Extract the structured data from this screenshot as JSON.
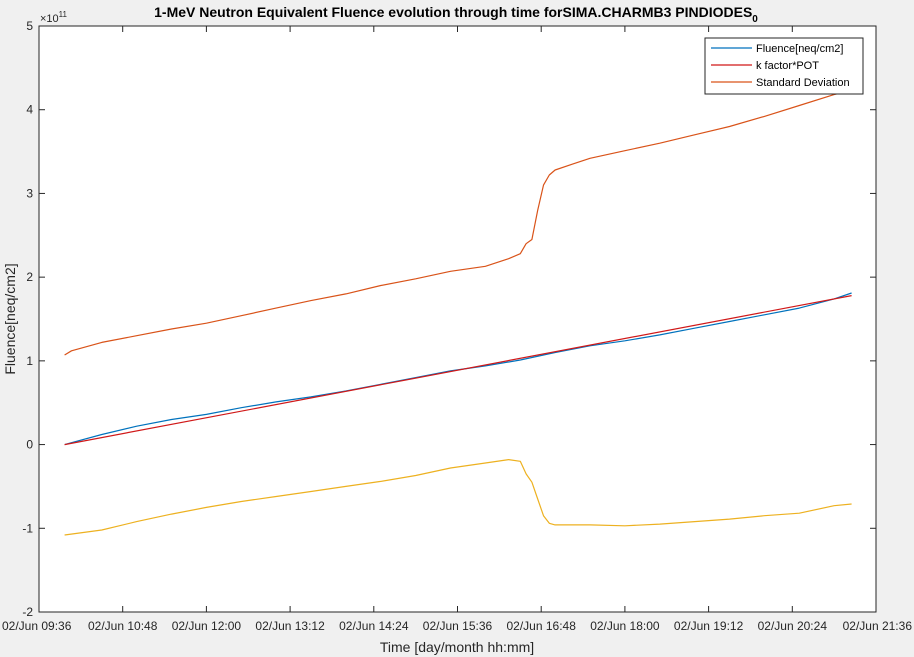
{
  "chart_data": {
    "type": "line",
    "title": "1-MeV Neutron Equivalent Fluence evolution through time forSIMA.CHARMB3 PINDIODES",
    "title_subscript": "0",
    "xlabel": "Time [day/month hh:mm]",
    "ylabel": "Fluence[neq/cm2]",
    "y_multiplier": "×10",
    "y_exponent": "11",
    "ylim": [
      -2,
      5
    ],
    "yticks": [
      -2,
      -1,
      0,
      1,
      2,
      3,
      4,
      5
    ],
    "ytick_labels": [
      "-2",
      "-1",
      "0",
      "1",
      "2",
      "3",
      "4",
      "5"
    ],
    "xlim": [
      "02/Jun 09:36",
      "02/Jun 21:36"
    ],
    "xticks": [
      "02/Jun 09:36",
      "02/Jun 10:48",
      "02/Jun 12:00",
      "02/Jun 13:12",
      "02/Jun 14:24",
      "02/Jun 15:36",
      "02/Jun 16:48",
      "02/Jun 18:00",
      "02/Jun 19:12",
      "02/Jun 20:24",
      "02/Jun 21:36"
    ],
    "xtick_labels": [
      "02/Jun 09:36",
      "02/Jun 10:48",
      "02/Jun 12:00",
      "02/Jun 13:12",
      "02/Jun 14:24",
      "02/Jun 15:36",
      "02/Jun 16:48",
      "02/Jun 18:00",
      "02/Jun 19:12",
      "02/Jun 20:24",
      "02/Jun 21:36"
    ],
    "grid": false,
    "legend_position": "top-right",
    "series": [
      {
        "name": "Fluence[neq/cm2]",
        "color": "#0072BD",
        "x": [
          "02/Jun 09:58",
          "02/Jun 10:30",
          "02/Jun 11:00",
          "02/Jun 11:30",
          "02/Jun 12:00",
          "02/Jun 12:30",
          "02/Jun 13:00",
          "02/Jun 13:30",
          "02/Jun 14:00",
          "02/Jun 14:30",
          "02/Jun 15:00",
          "02/Jun 15:30",
          "02/Jun 16:00",
          "02/Jun 16:30",
          "02/Jun 17:00",
          "02/Jun 17:30",
          "02/Jun 18:00",
          "02/Jun 18:30",
          "02/Jun 19:00",
          "02/Jun 19:30",
          "02/Jun 20:00",
          "02/Jun 20:30",
          "02/Jun 21:00",
          "02/Jun 21:15"
        ],
        "y": [
          0.0,
          0.12,
          0.22,
          0.3,
          0.36,
          0.44,
          0.51,
          0.57,
          0.64,
          0.72,
          0.8,
          0.88,
          0.94,
          1.01,
          1.1,
          1.18,
          1.24,
          1.31,
          1.39,
          1.47,
          1.55,
          1.63,
          1.74,
          1.81
        ]
      },
      {
        "name": "k factor*POT",
        "color": "#D01818",
        "x": [
          "02/Jun 09:58",
          "02/Jun 21:15"
        ],
        "y": [
          0.0,
          1.78
        ]
      },
      {
        "name": "Standard Deviation",
        "color": "#D95319",
        "x": [
          "02/Jun 09:58",
          "02/Jun 10:04",
          "02/Jun 10:30",
          "02/Jun 11:00",
          "02/Jun 11:30",
          "02/Jun 12:00",
          "02/Jun 12:30",
          "02/Jun 13:00",
          "02/Jun 13:30",
          "02/Jun 14:00",
          "02/Jun 14:30",
          "02/Jun 15:00",
          "02/Jun 15:30",
          "02/Jun 16:00",
          "02/Jun 16:20",
          "02/Jun 16:30",
          "02/Jun 16:35",
          "02/Jun 16:40",
          "02/Jun 16:45",
          "02/Jun 16:50",
          "02/Jun 16:55",
          "02/Jun 17:00",
          "02/Jun 17:15",
          "02/Jun 17:30",
          "02/Jun 18:00",
          "02/Jun 18:30",
          "02/Jun 19:00",
          "02/Jun 19:30",
          "02/Jun 20:00",
          "02/Jun 20:30",
          "02/Jun 21:00",
          "02/Jun 21:15"
        ],
        "y": [
          1.07,
          1.12,
          1.22,
          1.3,
          1.38,
          1.45,
          1.54,
          1.63,
          1.72,
          1.8,
          1.9,
          1.98,
          2.07,
          2.13,
          2.22,
          2.28,
          2.4,
          2.45,
          2.8,
          3.1,
          3.22,
          3.28,
          3.35,
          3.42,
          3.51,
          3.6,
          3.7,
          3.8,
          3.92,
          4.05,
          4.18,
          4.23
        ]
      },
      {
        "name": "",
        "color": "#EDB120",
        "x": [
          "02/Jun 09:58",
          "02/Jun 10:30",
          "02/Jun 11:00",
          "02/Jun 11:30",
          "02/Jun 12:00",
          "02/Jun 12:30",
          "02/Jun 13:00",
          "02/Jun 13:30",
          "02/Jun 14:00",
          "02/Jun 14:30",
          "02/Jun 15:00",
          "02/Jun 15:30",
          "02/Jun 16:00",
          "02/Jun 16:20",
          "02/Jun 16:30",
          "02/Jun 16:35",
          "02/Jun 16:40",
          "02/Jun 16:45",
          "02/Jun 16:50",
          "02/Jun 16:55",
          "02/Jun 17:00",
          "02/Jun 17:30",
          "02/Jun 18:00",
          "02/Jun 18:30",
          "02/Jun 19:00",
          "02/Jun 19:30",
          "02/Jun 20:00",
          "02/Jun 20:30",
          "02/Jun 21:00",
          "02/Jun 21:15"
        ],
        "y": [
          -1.08,
          -1.02,
          -0.92,
          -0.83,
          -0.75,
          -0.68,
          -0.62,
          -0.56,
          -0.5,
          -0.44,
          -0.37,
          -0.28,
          -0.22,
          -0.18,
          -0.2,
          -0.35,
          -0.45,
          -0.65,
          -0.85,
          -0.94,
          -0.96,
          -0.96,
          -0.97,
          -0.95,
          -0.92,
          -0.89,
          -0.85,
          -0.82,
          -0.73,
          -0.71
        ]
      }
    ]
  }
}
